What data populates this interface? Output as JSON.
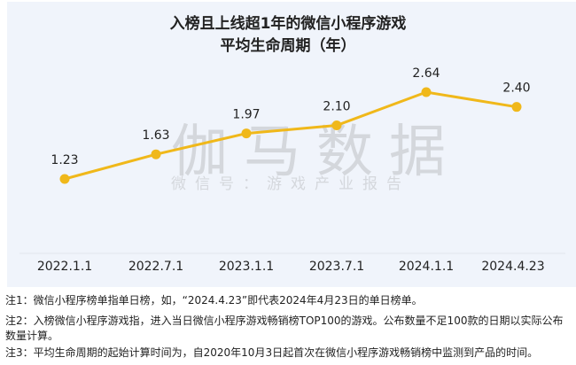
{
  "title_line1": "入榜且上线超1年的微信小程序游戏",
  "title_line2": "平均生命周期（年）",
  "watermark": {
    "main": "伽马数据",
    "sub": "微信号：游戏产业报告"
  },
  "chart_data": {
    "type": "line",
    "title": "入榜且上线超1年的微信小程序游戏 平均生命周期（年）",
    "categories": [
      "2022.1.1",
      "2022.7.1",
      "2023.1.1",
      "2023.7.1",
      "2024.1.1",
      "2024.4.23"
    ],
    "series": [
      {
        "name": "平均生命周期（年）",
        "values": [
          1.23,
          1.63,
          1.97,
          2.1,
          2.64,
          2.4
        ]
      }
    ],
    "value_labels": [
      "1.23",
      "1.63",
      "1.97",
      "2.10",
      "2.64",
      "2.40"
    ],
    "xlabel": "",
    "ylabel": "",
    "grid": false,
    "legend": "none",
    "color": "#f0b81a"
  },
  "notes": [
    "注1：微信小程序榜单指单日榜，如，“2024.4.23”即代表2024年4月23日的单日榜单。",
    "注2：入榜微信小程序游戏指，进入当日微信小程序游戏畅销榜TOP100的游戏。公布数量不足100款的日期以实际公布数量计算。",
    "注3：平均生命周期的起始计算时间为，自2020年10月3日起首次在微信小程序游戏畅销榜中监测到产品的时间。"
  ]
}
